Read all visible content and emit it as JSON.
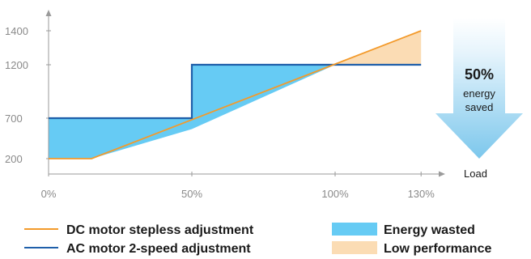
{
  "chart_data": {
    "type": "line",
    "x": [
      0,
      15,
      50,
      100,
      130
    ],
    "x_ticks": [
      "0%",
      "50%",
      "100%",
      "130%"
    ],
    "x_tick_values": [
      0,
      50,
      100,
      130
    ],
    "x_label": "Load",
    "y_ticks": [
      200,
      700,
      1200,
      1400
    ],
    "xlim": [
      0,
      130
    ],
    "grid": false,
    "series": [
      {
        "name": "DC motor stepless adjustment",
        "color": "#f39a2b",
        "points": [
          [
            0,
            200
          ],
          [
            15,
            200
          ],
          [
            130,
            1400
          ]
        ]
      },
      {
        "name": "AC motor 2-speed adjustment",
        "color": "#1f5faa",
        "points": [
          [
            0,
            700
          ],
          [
            50,
            700
          ],
          [
            50,
            1200
          ],
          [
            130,
            1200
          ]
        ]
      }
    ],
    "areas": [
      {
        "name": "Energy wasted",
        "color": "#66cbf4"
      },
      {
        "name": "Low performance",
        "color": "#fbdcb4"
      }
    ],
    "annotation": {
      "value": "50%",
      "line1": "energy",
      "line2": "saved"
    },
    "legend_position": "bottom"
  }
}
